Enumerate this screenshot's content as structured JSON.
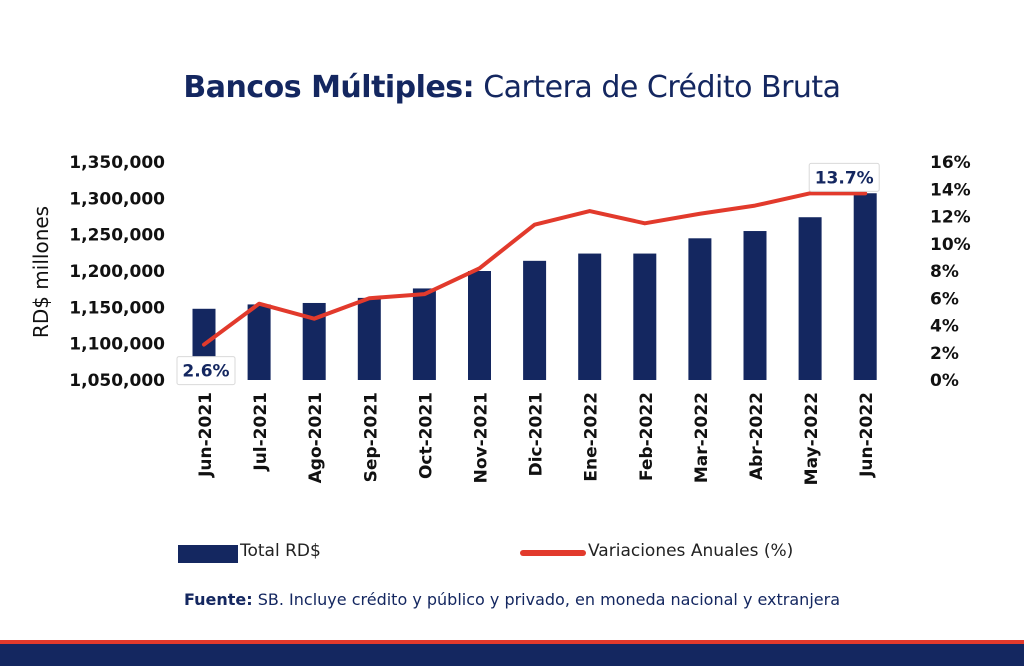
{
  "title": {
    "bold": "Bancos Múltiples:",
    "rest": "Cartera de Crédito Bruta"
  },
  "source": {
    "bold": "Fuente:",
    "rest": "SB. Incluye crédito y público y privado, en moneda nacional y extranjera"
  },
  "legend": {
    "bar_label": "Total RD$",
    "line_label": "Variaciones Anuales (%)"
  },
  "colors": {
    "bar": "#142760",
    "line": "#e23a2c",
    "title": "#142760"
  },
  "chart_data": {
    "type": "bar+line",
    "categories": [
      "Jun-2021",
      "Jul-2021",
      "Ago-2021",
      "Sep-2021",
      "Oct-2021",
      "Nov-2021",
      "Dic-2021",
      "Ene-2022",
      "Feb-2022",
      "Mar-2022",
      "Abr-2022",
      "May-2022",
      "Jun-2022"
    ],
    "series": [
      {
        "name": "Total RD$",
        "axis": "left",
        "values": [
          1148000,
          1154000,
          1156000,
          1163000,
          1176000,
          1200000,
          1214000,
          1224000,
          1224000,
          1245000,
          1255000,
          1274000,
          1307000
        ]
      },
      {
        "name": "Variaciones Anuales (%)",
        "axis": "right",
        "values": [
          2.6,
          5.6,
          4.5,
          6.0,
          6.3,
          8.2,
          11.4,
          12.4,
          11.5,
          12.2,
          12.8,
          13.7,
          13.7
        ]
      }
    ],
    "ylabel": "RD$ millones",
    "y_left": {
      "min": 1050000,
      "max": 1350000,
      "ticks": [
        "1,050,000",
        "1,100,000",
        "1,150,000",
        "1,200,000",
        "1,250,000",
        "1,300,000",
        "1,350,000"
      ]
    },
    "y_right": {
      "min": 0,
      "max": 16,
      "ticks": [
        "0%",
        "2%",
        "4%",
        "6%",
        "8%",
        "10%",
        "12%",
        "14%",
        "16%"
      ]
    },
    "annotations": [
      {
        "category": "Jun-2021",
        "text": "2.6%"
      },
      {
        "category": "Jun-2022",
        "text": "13.7%"
      }
    ]
  }
}
